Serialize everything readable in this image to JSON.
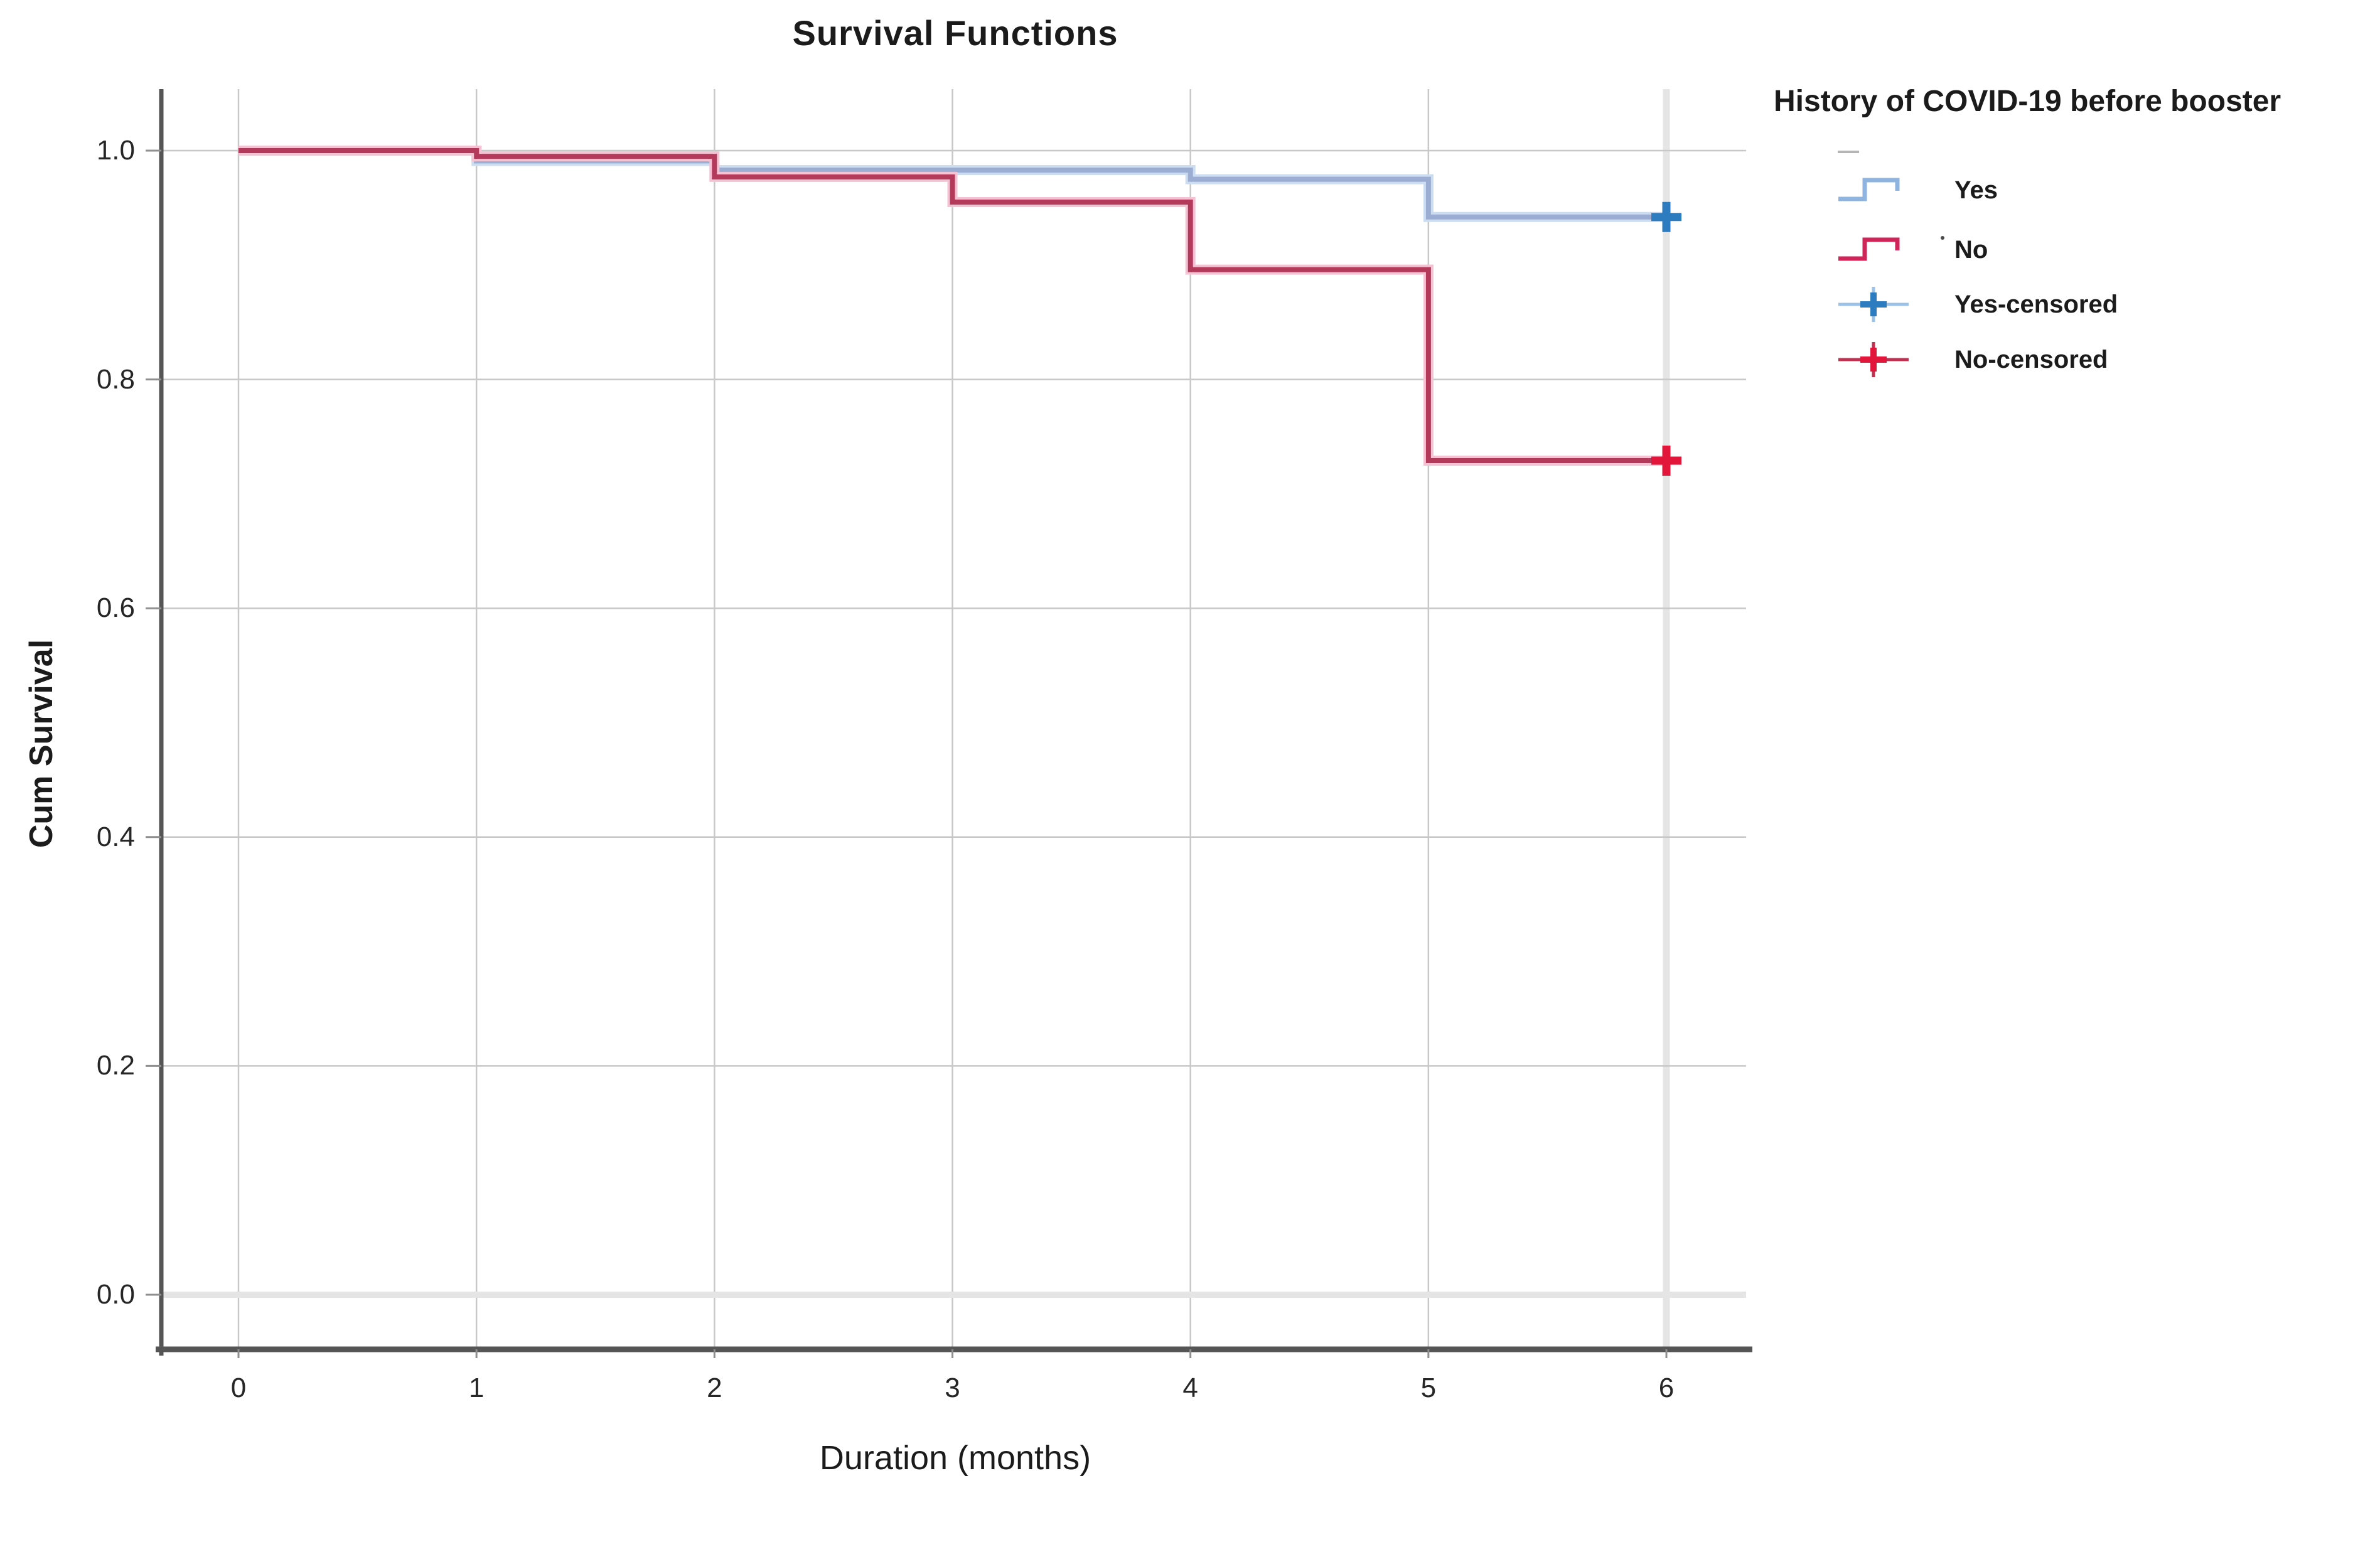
{
  "title": "Survival Functions",
  "axes": {
    "x": {
      "label": "Duration (months)",
      "ticks": [
        {
          "v": 0,
          "label": "0"
        },
        {
          "v": 1,
          "label": "1"
        },
        {
          "v": 2,
          "label": "2"
        },
        {
          "v": 3,
          "label": "3"
        },
        {
          "v": 4,
          "label": "4"
        },
        {
          "v": 5,
          "label": "5"
        },
        {
          "v": 6,
          "label": "6"
        }
      ]
    },
    "y": {
      "label": "Cum Survival",
      "ticks": [
        {
          "v": 1.0,
          "label": "1.0"
        },
        {
          "v": 0.8,
          "label": "0.8"
        },
        {
          "v": 0.6,
          "label": "0.6"
        },
        {
          "v": 0.4,
          "label": "0.4"
        },
        {
          "v": 0.2,
          "label": "0.2"
        },
        {
          "v": 0.0,
          "label": "0.0"
        }
      ]
    }
  },
  "legend": {
    "title": "History of COVID-19 before booster",
    "entries": [
      {
        "label": "Yes",
        "marker": "step-line",
        "color": "#8fb4e0",
        "color_strong": "#8fb4e0"
      },
      {
        "label": "No",
        "marker": "step-line",
        "color": "#cf2559",
        "color_strong": "#cf2559"
      },
      {
        "label": "Yes-censored",
        "marker": "plus",
        "color": "#9cc2e8",
        "color_strong": "#2e7cc0"
      },
      {
        "label": "No-censored",
        "marker": "plus",
        "color": "#c03050",
        "color_strong": "#e2153a"
      }
    ]
  },
  "chart_data": {
    "type": "line",
    "subtype": "kaplan-meier-step",
    "title": "Survival Functions",
    "xlabel": "Duration (months)",
    "ylabel": "Cum Survival",
    "xlim": [
      -0.35,
      6.35
    ],
    "ylim": [
      -0.05,
      1.05
    ],
    "x_ticks": [
      0,
      1,
      2,
      3,
      4,
      5,
      6
    ],
    "y_ticks": [
      0.0,
      0.2,
      0.4,
      0.6,
      0.8,
      1.0
    ],
    "grid": true,
    "legend_position": "right",
    "series": [
      {
        "id": "yes",
        "name": "Yes",
        "color": "#9badd2",
        "halo_color": "#cdddf1",
        "censor_color": "#2e7cc0",
        "points": [
          [
            0,
            1.0
          ],
          [
            1,
            0.991
          ],
          [
            2,
            0.983
          ],
          [
            4,
            0.975
          ],
          [
            5,
            0.942
          ],
          [
            6,
            0.942
          ]
        ],
        "censored": [
          [
            6,
            0.942
          ]
        ]
      },
      {
        "id": "no",
        "name": "No",
        "color": "#b43a5c",
        "halo_color": "#f5c2d4",
        "censor_color": "#e2153a",
        "points": [
          [
            0,
            1.0
          ],
          [
            1,
            0.995
          ],
          [
            2,
            0.977
          ],
          [
            3,
            0.955
          ],
          [
            4,
            0.896
          ],
          [
            5,
            0.729
          ],
          [
            6,
            0.729
          ]
        ],
        "censored": [
          [
            6,
            0.729
          ]
        ]
      }
    ]
  },
  "theme": {
    "background": "#ffffff",
    "grid": "#c8c8c8",
    "grid_light": "#e5e5e5",
    "axis": "#555555",
    "tick": "#8f8f8f",
    "text": "#1b1b1b"
  }
}
